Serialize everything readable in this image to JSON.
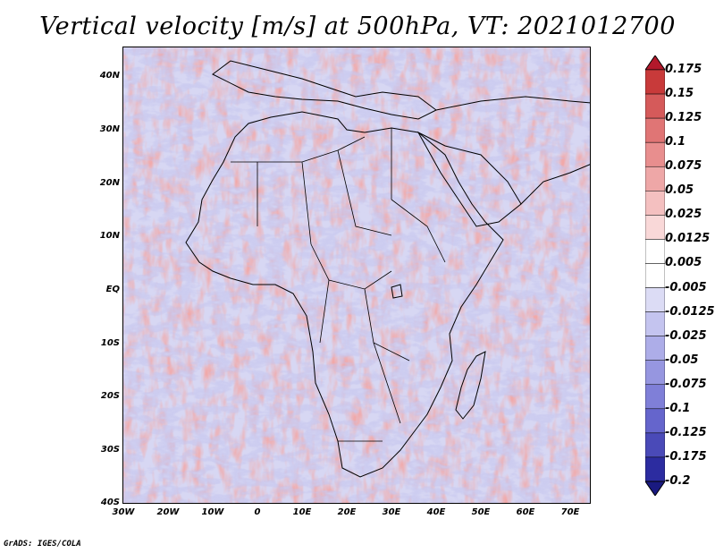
{
  "title": "Vertical velocity [m/s] at 500hPa, VT: 2021012700",
  "lat_labels": [
    "40N",
    "30N",
    "20N",
    "10N",
    "EQ",
    "10S",
    "20S",
    "30S",
    "40S"
  ],
  "lon_labels": [
    "30W",
    "20W",
    "10W",
    "0",
    "10E",
    "20E",
    "30E",
    "40E",
    "50E",
    "60E",
    "70E"
  ],
  "colorbar": {
    "labels": [
      "0.175",
      "0.15",
      "0.125",
      "0.1",
      "0.075",
      "0.05",
      "0.025",
      "0.0125",
      "0.005",
      "-0.005",
      "-0.0125",
      "-0.025",
      "-0.05",
      "-0.075",
      "-0.1",
      "-0.125",
      "-0.175",
      "-0.2"
    ],
    "colors": [
      "#b2182b",
      "#c83a3a",
      "#d55a5a",
      "#e07575",
      "#e88e8e",
      "#eea7a7",
      "#f4c0c0",
      "#f9d8d8",
      "#ffffff",
      "#ffffff",
      "#dcdcf5",
      "#c4c4ef",
      "#adade8",
      "#9696e0",
      "#7f7fd8",
      "#6565cc",
      "#4a4ab8",
      "#2c2ca0",
      "#1a1a80"
    ]
  },
  "footer": "GrADS: IGES/COLA"
}
